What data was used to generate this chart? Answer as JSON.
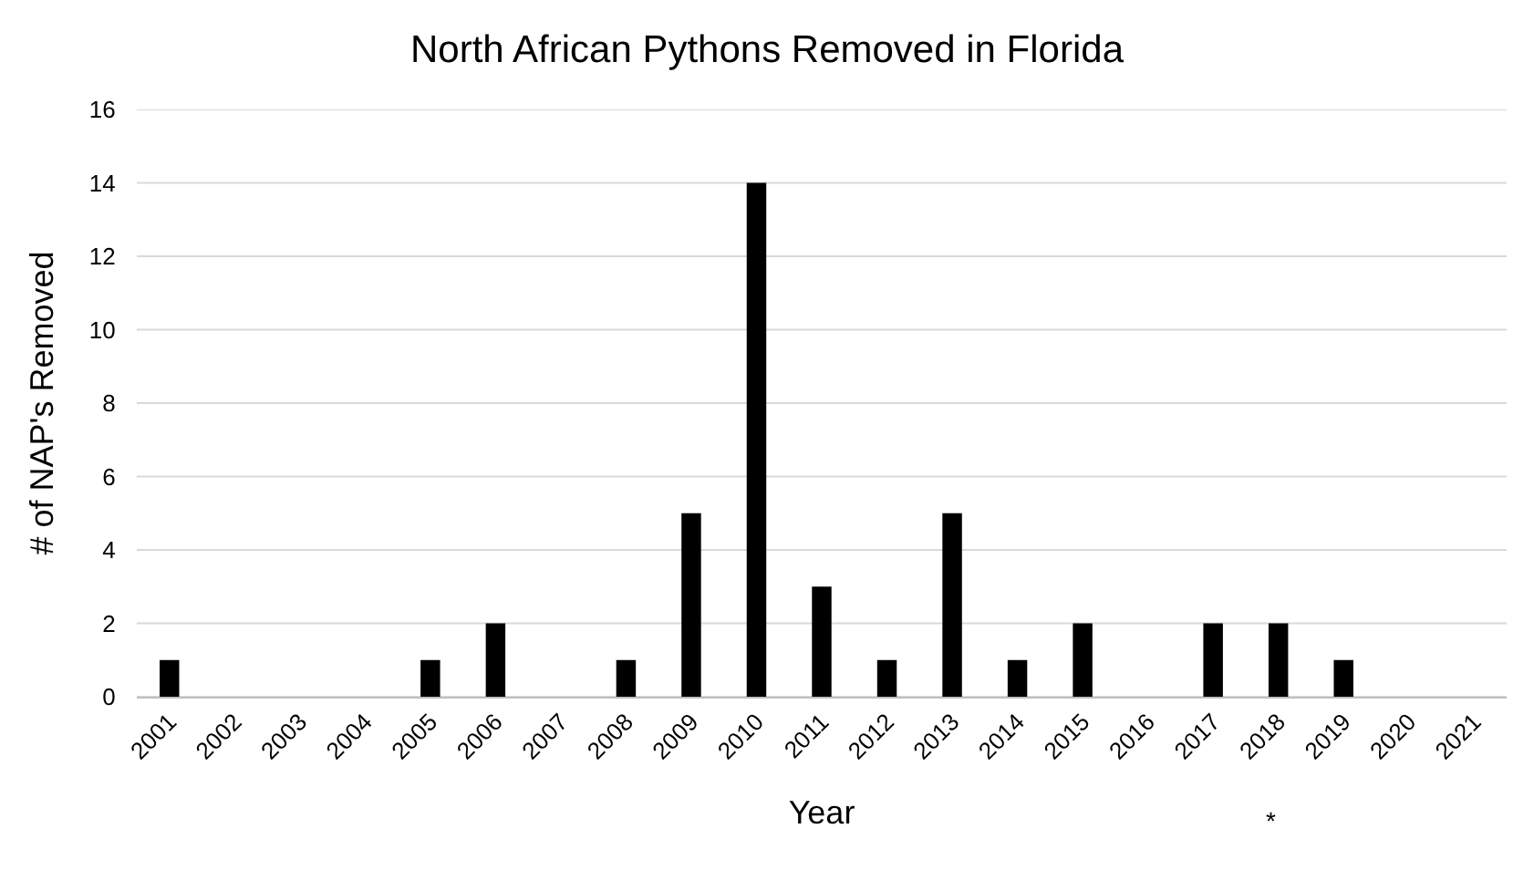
{
  "chart_data": {
    "type": "bar",
    "title": "North African Pythons Removed in Florida",
    "xlabel": "Year",
    "ylabel": "# of NAP's Removed",
    "categories": [
      "2001",
      "2002",
      "2003",
      "2004",
      "2005",
      "2006",
      "2007",
      "2008",
      "2009",
      "2010",
      "2011",
      "2012",
      "2013",
      "2014",
      "2015",
      "2016",
      "2017",
      "2018",
      "2019",
      "2020",
      "2021"
    ],
    "values": [
      1,
      0,
      0,
      0,
      1,
      2,
      0,
      1,
      5,
      14,
      3,
      1,
      5,
      1,
      2,
      0,
      2,
      2,
      1,
      0,
      0
    ],
    "color": "#000000",
    "ylim": [
      0,
      16
    ],
    "yticks": [
      0,
      2,
      4,
      6,
      8,
      10,
      12,
      14,
      16
    ],
    "grid": "y",
    "annotations": [
      "*"
    ]
  }
}
